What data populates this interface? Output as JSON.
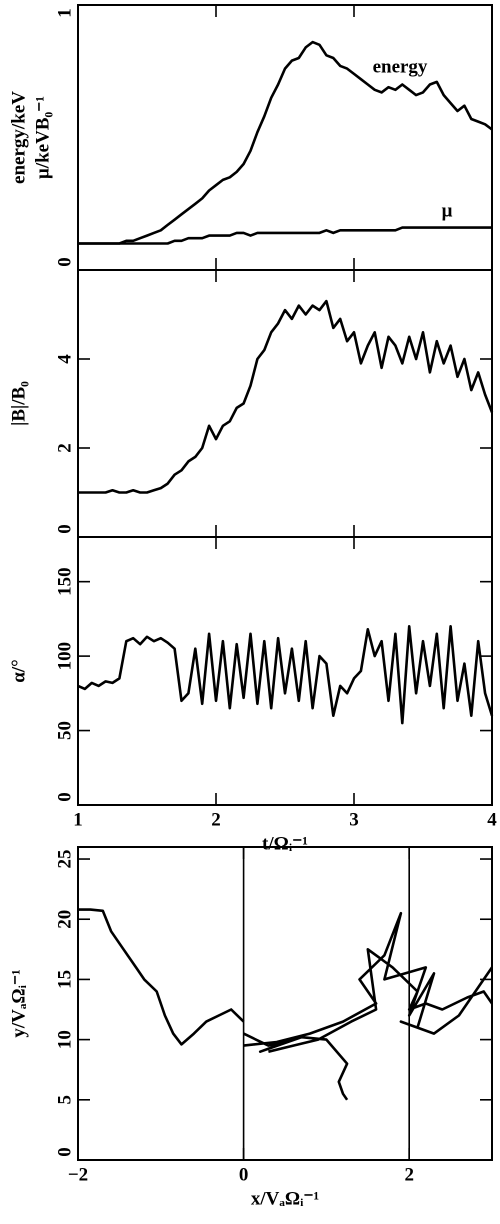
{
  "chart_data": [
    {
      "type": "line",
      "ylabel": [
        "energy/keV",
        "μ/keVB₀⁻¹"
      ],
      "ylim": [
        0,
        1
      ],
      "yticks": [
        0,
        1
      ],
      "xlim": [
        1,
        4
      ],
      "x": [
        1,
        1.05,
        1.1,
        1.15,
        1.2,
        1.25,
        1.3,
        1.35,
        1.4,
        1.45,
        1.5,
        1.55,
        1.6,
        1.65,
        1.7,
        1.75,
        1.8,
        1.85,
        1.9,
        1.95,
        2,
        2.05,
        2.1,
        2.15,
        2.2,
        2.25,
        2.3,
        2.35,
        2.4,
        2.45,
        2.5,
        2.55,
        2.6,
        2.65,
        2.7,
        2.75,
        2.8,
        2.85,
        2.9,
        2.95,
        3,
        3.05,
        3.1,
        3.15,
        3.2,
        3.25,
        3.3,
        3.35,
        3.4,
        3.45,
        3.5,
        3.55,
        3.6,
        3.65,
        3.7,
        3.75,
        3.8,
        3.85,
        3.9,
        3.95,
        4
      ],
      "series": [
        {
          "name": "energy",
          "color": "#000000",
          "values": [
            0.1,
            0.1,
            0.1,
            0.1,
            0.1,
            0.1,
            0.1,
            0.11,
            0.11,
            0.12,
            0.13,
            0.14,
            0.15,
            0.17,
            0.19,
            0.21,
            0.23,
            0.25,
            0.27,
            0.3,
            0.32,
            0.34,
            0.35,
            0.37,
            0.4,
            0.45,
            0.52,
            0.58,
            0.65,
            0.7,
            0.76,
            0.79,
            0.8,
            0.84,
            0.86,
            0.85,
            0.81,
            0.8,
            0.77,
            0.76,
            0.74,
            0.72,
            0.7,
            0.68,
            0.67,
            0.69,
            0.68,
            0.7,
            0.68,
            0.66,
            0.67,
            0.7,
            0.71,
            0.66,
            0.63,
            0.6,
            0.62,
            0.57,
            0.56,
            0.55,
            0.53
          ]
        },
        {
          "name": "μ",
          "color": "#000000",
          "values": [
            0.1,
            0.1,
            0.1,
            0.1,
            0.1,
            0.1,
            0.1,
            0.1,
            0.1,
            0.1,
            0.1,
            0.1,
            0.1,
            0.1,
            0.11,
            0.11,
            0.12,
            0.12,
            0.12,
            0.13,
            0.13,
            0.13,
            0.13,
            0.14,
            0.14,
            0.13,
            0.14,
            0.14,
            0.14,
            0.14,
            0.14,
            0.14,
            0.14,
            0.14,
            0.14,
            0.14,
            0.15,
            0.14,
            0.15,
            0.15,
            0.15,
            0.15,
            0.15,
            0.15,
            0.15,
            0.15,
            0.15,
            0.16,
            0.16,
            0.16,
            0.16,
            0.16,
            0.16,
            0.16,
            0.16,
            0.16,
            0.16,
            0.16,
            0.16,
            0.16,
            0.16
          ]
        }
      ]
    },
    {
      "type": "line",
      "ylabel": [
        "|B|/B₀"
      ],
      "ylim": [
        0,
        6
      ],
      "yticks": [
        0,
        2,
        4
      ],
      "xlim": [
        1,
        4
      ],
      "x": [
        1,
        1.05,
        1.1,
        1.15,
        1.2,
        1.25,
        1.3,
        1.35,
        1.4,
        1.45,
        1.5,
        1.55,
        1.6,
        1.65,
        1.7,
        1.75,
        1.8,
        1.85,
        1.9,
        1.95,
        2,
        2.05,
        2.1,
        2.15,
        2.2,
        2.25,
        2.3,
        2.35,
        2.4,
        2.45,
        2.5,
        2.55,
        2.6,
        2.65,
        2.7,
        2.75,
        2.8,
        2.85,
        2.9,
        2.95,
        3,
        3.05,
        3.1,
        3.15,
        3.2,
        3.25,
        3.3,
        3.35,
        3.4,
        3.45,
        3.5,
        3.55,
        3.6,
        3.65,
        3.7,
        3.75,
        3.8,
        3.85,
        3.9,
        3.95,
        4
      ],
      "series": [
        {
          "name": "|B|/B₀",
          "color": "#000000",
          "values": [
            1.0,
            1.0,
            1.0,
            1.0,
            1.0,
            1.05,
            1.0,
            1.0,
            1.05,
            1.0,
            1.0,
            1.05,
            1.1,
            1.2,
            1.4,
            1.5,
            1.7,
            1.8,
            2.0,
            2.5,
            2.2,
            2.5,
            2.6,
            2.9,
            3.0,
            3.4,
            4.0,
            4.2,
            4.6,
            4.8,
            5.1,
            4.9,
            5.2,
            5.0,
            5.2,
            5.1,
            5.3,
            4.7,
            4.9,
            4.4,
            4.6,
            3.9,
            4.3,
            4.6,
            3.8,
            4.5,
            4.3,
            3.9,
            4.5,
            4.0,
            4.6,
            3.7,
            4.4,
            3.9,
            4.3,
            3.6,
            4.0,
            3.3,
            3.7,
            3.2,
            2.8
          ]
        }
      ]
    },
    {
      "type": "line",
      "ylabel": [
        "α/°"
      ],
      "xlabel": "t/Ωᵢ⁻¹",
      "ylim": [
        0,
        180
      ],
      "yticks": [
        0,
        50,
        100,
        150
      ],
      "xlim": [
        1,
        4
      ],
      "xticks": [
        1,
        2,
        3,
        4
      ],
      "x": [
        1,
        1.05,
        1.1,
        1.15,
        1.2,
        1.25,
        1.3,
        1.35,
        1.4,
        1.45,
        1.5,
        1.55,
        1.6,
        1.65,
        1.7,
        1.75,
        1.8,
        1.85,
        1.9,
        1.95,
        2,
        2.05,
        2.1,
        2.15,
        2.2,
        2.25,
        2.3,
        2.35,
        2.4,
        2.45,
        2.5,
        2.55,
        2.6,
        2.65,
        2.7,
        2.75,
        2.8,
        2.85,
        2.9,
        2.95,
        3,
        3.05,
        3.1,
        3.15,
        3.2,
        3.25,
        3.3,
        3.35,
        3.4,
        3.45,
        3.5,
        3.55,
        3.6,
        3.65,
        3.7,
        3.75,
        3.8,
        3.85,
        3.9,
        3.95,
        4
      ],
      "series": [
        {
          "name": "α/°",
          "color": "#000000",
          "values": [
            80,
            78,
            82,
            80,
            83,
            82,
            85,
            110,
            112,
            108,
            113,
            110,
            112,
            109,
            105,
            70,
            75,
            105,
            68,
            115,
            70,
            110,
            65,
            108,
            72,
            115,
            68,
            110,
            65,
            112,
            75,
            105,
            70,
            110,
            65,
            100,
            95,
            60,
            80,
            75,
            85,
            90,
            118,
            100,
            110,
            70,
            115,
            55,
            120,
            75,
            110,
            80,
            115,
            65,
            120,
            70,
            95,
            60,
            110,
            75,
            60
          ]
        }
      ]
    },
    {
      "type": "line",
      "ylabel": [
        "y/VₐΩᵢ⁻¹"
      ],
      "xlabel": "x/VₐΩᵢ⁻¹",
      "xlim": [
        -2,
        3
      ],
      "xticks": [
        {
          "value": -2,
          "label": "−2"
        },
        0,
        2
      ],
      "ylim": [
        0,
        26
      ],
      "yticks": [
        0,
        5,
        10,
        15,
        20,
        25
      ],
      "color": "#000000",
      "x": [
        -2,
        -1.85,
        -1.7,
        -1.6,
        -1.45,
        -1.3,
        -1.2,
        -1.05,
        -0.95,
        -0.85,
        -0.75,
        -0.6,
        -0.45,
        -0.3,
        -0.15,
        0,
        null,
        0,
        0.3,
        0.6,
        0.2,
        0.7,
        1.0,
        1.25,
        1.15,
        1.2,
        1.25,
        null,
        0,
        0.4,
        0.8,
        1.2,
        1.6,
        1.4,
        1.7,
        1.9,
        1.7,
        2.2,
        2.0,
        2.3,
        2.1,
        1.9,
        2.3,
        2.6,
        2.9,
        3.0,
        null,
        0.3,
        0.6,
        0.9,
        1.3,
        1.6,
        1.5,
        1.8,
        2.1,
        2.0,
        2.2,
        2.4,
        2.7,
        2.9,
        3.0
      ],
      "values": [
        20.8,
        20.8,
        20.7,
        19,
        17.5,
        16,
        15,
        14,
        12,
        10.5,
        9.6,
        10.5,
        11.5,
        12,
        12.5,
        11.5,
        null,
        10.5,
        9.5,
        10,
        9,
        10.2,
        10,
        8,
        6.5,
        5.5,
        5,
        null,
        9.5,
        9.8,
        10.5,
        11.5,
        13,
        15,
        17,
        20.5,
        15,
        16,
        12,
        15.5,
        11,
        11.5,
        10.5,
        12,
        15,
        16,
        null,
        9,
        9.5,
        10,
        11.5,
        12.5,
        17.5,
        16,
        14,
        12.5,
        13,
        12.5,
        13.5,
        14,
        13
      ]
    }
  ]
}
